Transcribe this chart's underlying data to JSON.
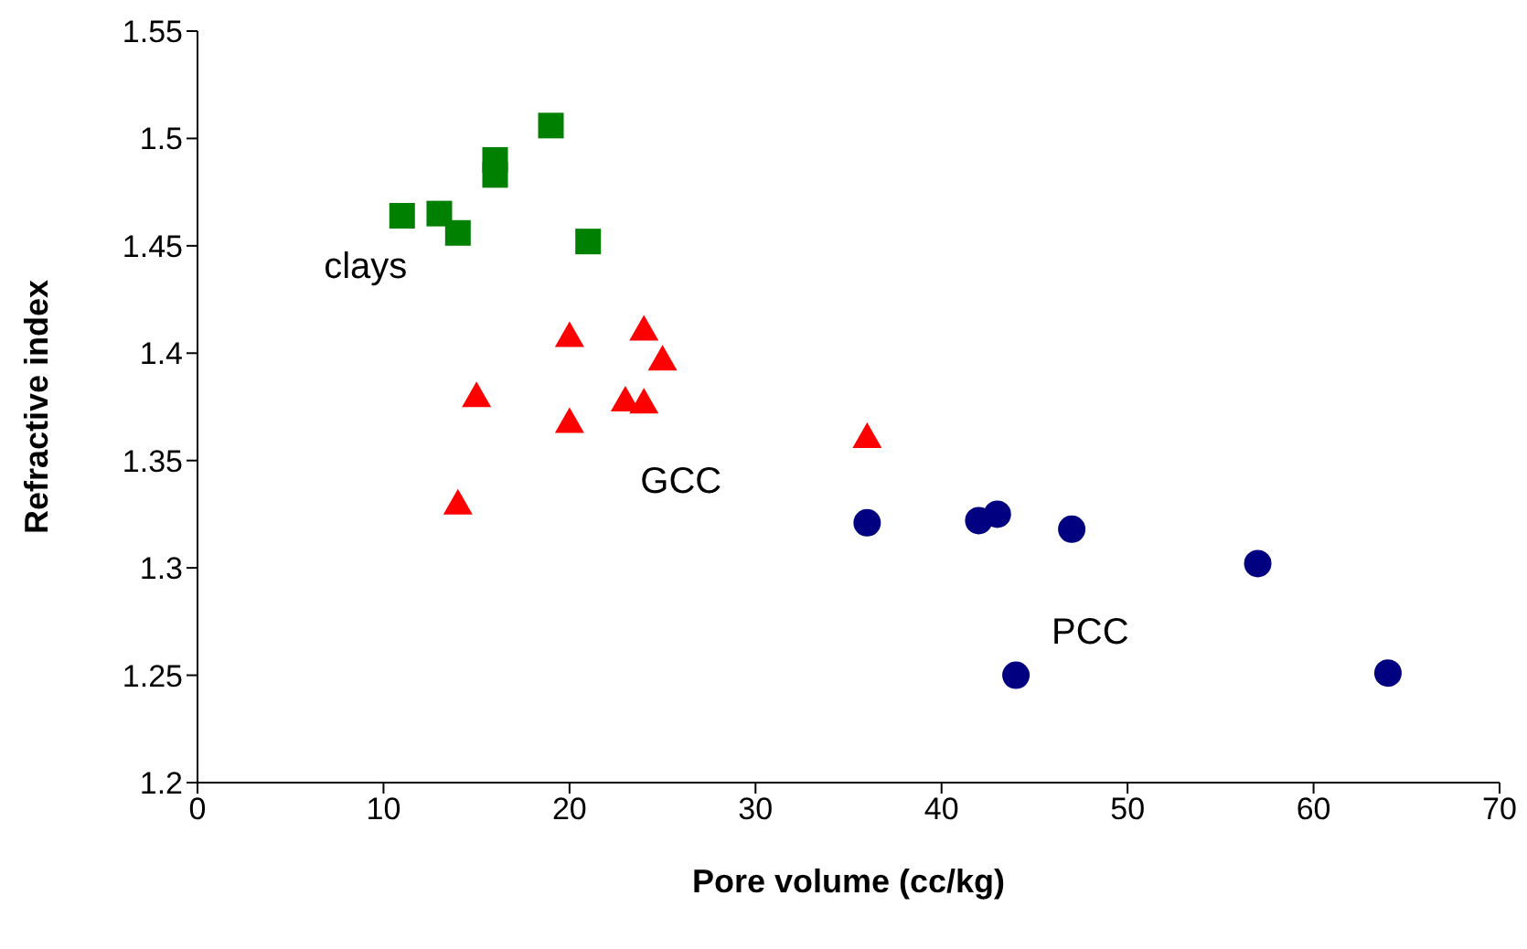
{
  "chart_data": {
    "type": "scatter",
    "xlabel": "Pore volume (cc/kg)",
    "ylabel": "Refractive index",
    "xlim": [
      0,
      70
    ],
    "xticks": [
      0,
      10,
      20,
      30,
      40,
      50,
      60,
      70
    ],
    "ylim": [
      1.2,
      1.55
    ],
    "yticks": [
      1.2,
      1.25,
      1.3,
      1.35,
      1.4,
      1.45,
      1.5,
      1.55
    ],
    "grid": false,
    "legend": false,
    "series": [
      {
        "name": "clays",
        "color": "#008000",
        "marker": "square",
        "x": [
          11,
          13,
          14,
          16,
          16,
          19,
          21
        ],
        "values": [
          1.464,
          1.465,
          1.456,
          1.49,
          1.483,
          1.506,
          1.452
        ]
      },
      {
        "name": "GCC",
        "color": "#ff0000",
        "marker": "triangle",
        "x": [
          14,
          15,
          20,
          20,
          23,
          24,
          24,
          25,
          36
        ],
        "values": [
          1.33,
          1.38,
          1.408,
          1.368,
          1.378,
          1.411,
          1.377,
          1.397,
          1.361
        ]
      },
      {
        "name": "PCC",
        "color": "#000080",
        "marker": "circle",
        "x": [
          36,
          42,
          43,
          44,
          47,
          57,
          64
        ],
        "values": [
          1.321,
          1.322,
          1.325,
          1.25,
          1.318,
          1.302,
          1.251
        ]
      }
    ]
  }
}
